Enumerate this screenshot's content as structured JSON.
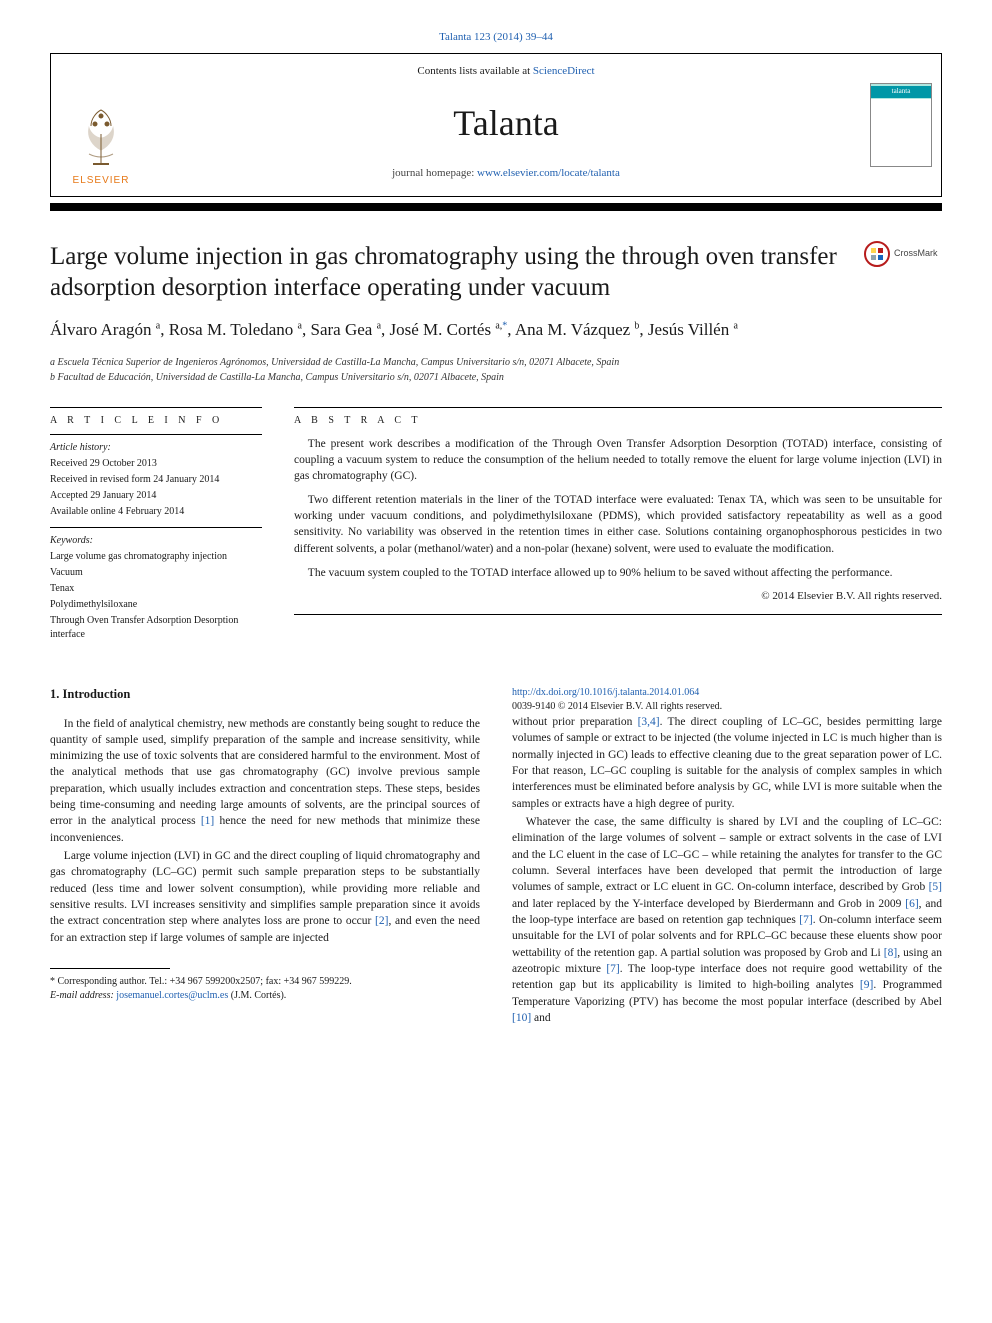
{
  "citation": "Talanta 123 (2014) 39–44",
  "header": {
    "contents_prefix": "Contents lists available at ",
    "contents_link": "ScienceDirect",
    "journal": "Talanta",
    "homepage_prefix": "journal homepage: ",
    "homepage_url": "www.elsevier.com/locate/talanta",
    "publisher": "ELSEVIER",
    "cover_label": "talanta"
  },
  "crossmark": "CrossMark",
  "title": "Large volume injection in gas chromatography using the through oven transfer adsorption desorption interface operating under vacuum",
  "authors_html": "Álvaro Aragón <sup>a</sup>, Rosa M. Toledano <sup>a</sup>, Sara Gea <sup>a</sup>, José M. Cortés <sup>a,</sup><sup class='corr'>*</sup>, Ana M. Vázquez <sup>b</sup>, Jesús Villén <sup>a</sup>",
  "affiliations": {
    "a": "a Escuela Técnica Superior de Ingenieros Agrónomos, Universidad de Castilla-La Mancha, Campus Universitario s/n, 02071 Albacete, Spain",
    "b": "b Facultad de Educación, Universidad de Castilla-La Mancha, Campus Universitario s/n, 02071 Albacete, Spain"
  },
  "article_info": {
    "heading": "a r t i c l e  i n f o",
    "history_label": "Article history:",
    "received": "Received 29 October 2013",
    "revised": "Received in revised form 24 January 2014",
    "accepted": "Accepted 29 January 2014",
    "online": "Available online 4 February 2014",
    "keywords_label": "Keywords:",
    "keywords": [
      "Large volume gas chromatography injection",
      "Vacuum",
      "Tenax",
      "Polydimethylsiloxane",
      "Through Oven Transfer Adsorption Desorption interface"
    ]
  },
  "abstract": {
    "heading": "a b s t r a c t",
    "paragraphs": [
      "The present work describes a modification of the Through Oven Transfer Adsorption Desorption (TOTAD) interface, consisting of coupling a vacuum system to reduce the consumption of the helium needed to totally remove the eluent for large volume injection (LVI) in gas chromatography (GC).",
      "Two different retention materials in the liner of the TOTAD interface were evaluated: Tenax TA, which was seen to be unsuitable for working under vacuum conditions, and polydimethylsiloxane (PDMS), which provided satisfactory repeatability as well as a good sensitivity. No variability was observed in the retention times in either case. Solutions containing organophosphorous pesticides in two different solvents, a polar (methanol/water) and a non-polar (hexane) solvent, were used to evaluate the modification.",
      "The vacuum system coupled to the TOTAD interface allowed up to 90% helium to be saved without affecting the performance."
    ],
    "copyright": "© 2014 Elsevier B.V. All rights reserved."
  },
  "section1": {
    "heading": "1.  Introduction",
    "p1": "In the field of analytical chemistry, new methods are constantly being sought to reduce the quantity of sample used, simplify preparation of the sample and increase sensitivity, while minimizing the use of toxic solvents that are considered harmful to the environment. Most of the analytical methods that use gas chromatography (GC) involve previous sample preparation, which usually includes extraction and concentration steps. These steps, besides being time-consuming and needing large amounts of solvents, are the principal sources of error in the analytical process ",
    "p1_cite": "[1]",
    "p1_tail": " hence the need for new methods that minimize these inconveniences.",
    "p2": "Large volume injection (LVI) in GC and the direct coupling of liquid chromatography and gas chromatography (LC–GC) permit such sample preparation steps to be substantially reduced (less time and lower solvent consumption), while providing more reliable and sensitive results. LVI increases sensitivity and simplifies sample preparation since it avoids the extract concentration step where analytes loss are prone to occur ",
    "p2_cite": "[2]",
    "p2_tail": ", and even the need for an extraction step if large volumes of sample are injected",
    "p3a": "without prior preparation ",
    "p3_cite1": "[3,4]",
    "p3b": ". The direct coupling of LC–GC, besides permitting large volumes of sample or extract to be injected (the volume injected in LC is much higher than is normally injected in GC) leads to effective cleaning due to the great separation power of LC. For that reason, LC–GC coupling is suitable for the analysis of complex samples in which interferences must be eliminated before analysis by GC, while LVI is more suitable when the samples or extracts have a high degree of purity.",
    "p4a": "Whatever the case, the same difficulty is shared by LVI and the coupling of LC–GC: elimination of the large volumes of solvent – sample or extract solvents in the case of LVI and the LC eluent in the case of LC–GC – while retaining the analytes for transfer to the GC column. Several interfaces have been developed that permit the introduction of large volumes of sample, extract or LC eluent in GC. On-column interface, described by Grob ",
    "p4_cite5": "[5]",
    "p4b": " and later replaced by the Y-interface developed by Bierdermann and Grob in 2009 ",
    "p4_cite6": "[6]",
    "p4c": ", and the loop-type interface are based on retention gap techniques ",
    "p4_cite7a": "[7]",
    "p4d": ". On-column interface seem unsuitable for the LVI of polar solvents and for RPLC–GC because these eluents show poor wettability of the retention gap. A partial solution was proposed by Grob and Li ",
    "p4_cite8": "[8]",
    "p4e": ", using an azeotropic mixture ",
    "p4_cite7b": "[7]",
    "p4f": ". The loop-type interface does not require good wettability of the retention gap but its applicability is limited to high-boiling analytes ",
    "p4_cite9": "[9]",
    "p4g": ". Programmed Temperature Vaporizing (PTV) has become the most popular interface (described by Abel ",
    "p4_cite10": "[10]",
    "p4h": " and"
  },
  "footnotes": {
    "corr": "* Corresponding author. Tel.: +34 967 599200x2507; fax: +34 967 599229.",
    "email_label": "E-mail address: ",
    "email": "josemanuel.cortes@uclm.es",
    "email_tail": " (J.M. Cortés)."
  },
  "doi": {
    "url": "http://dx.doi.org/10.1016/j.talanta.2014.01.064",
    "issn_line": "0039-9140 © 2014 Elsevier B.V. All rights reserved."
  },
  "colors": {
    "link": "#2060b0",
    "elsevier_orange": "#e67817",
    "crossmark_red": "#b71c1c",
    "talanta_teal": "#0097a7"
  }
}
